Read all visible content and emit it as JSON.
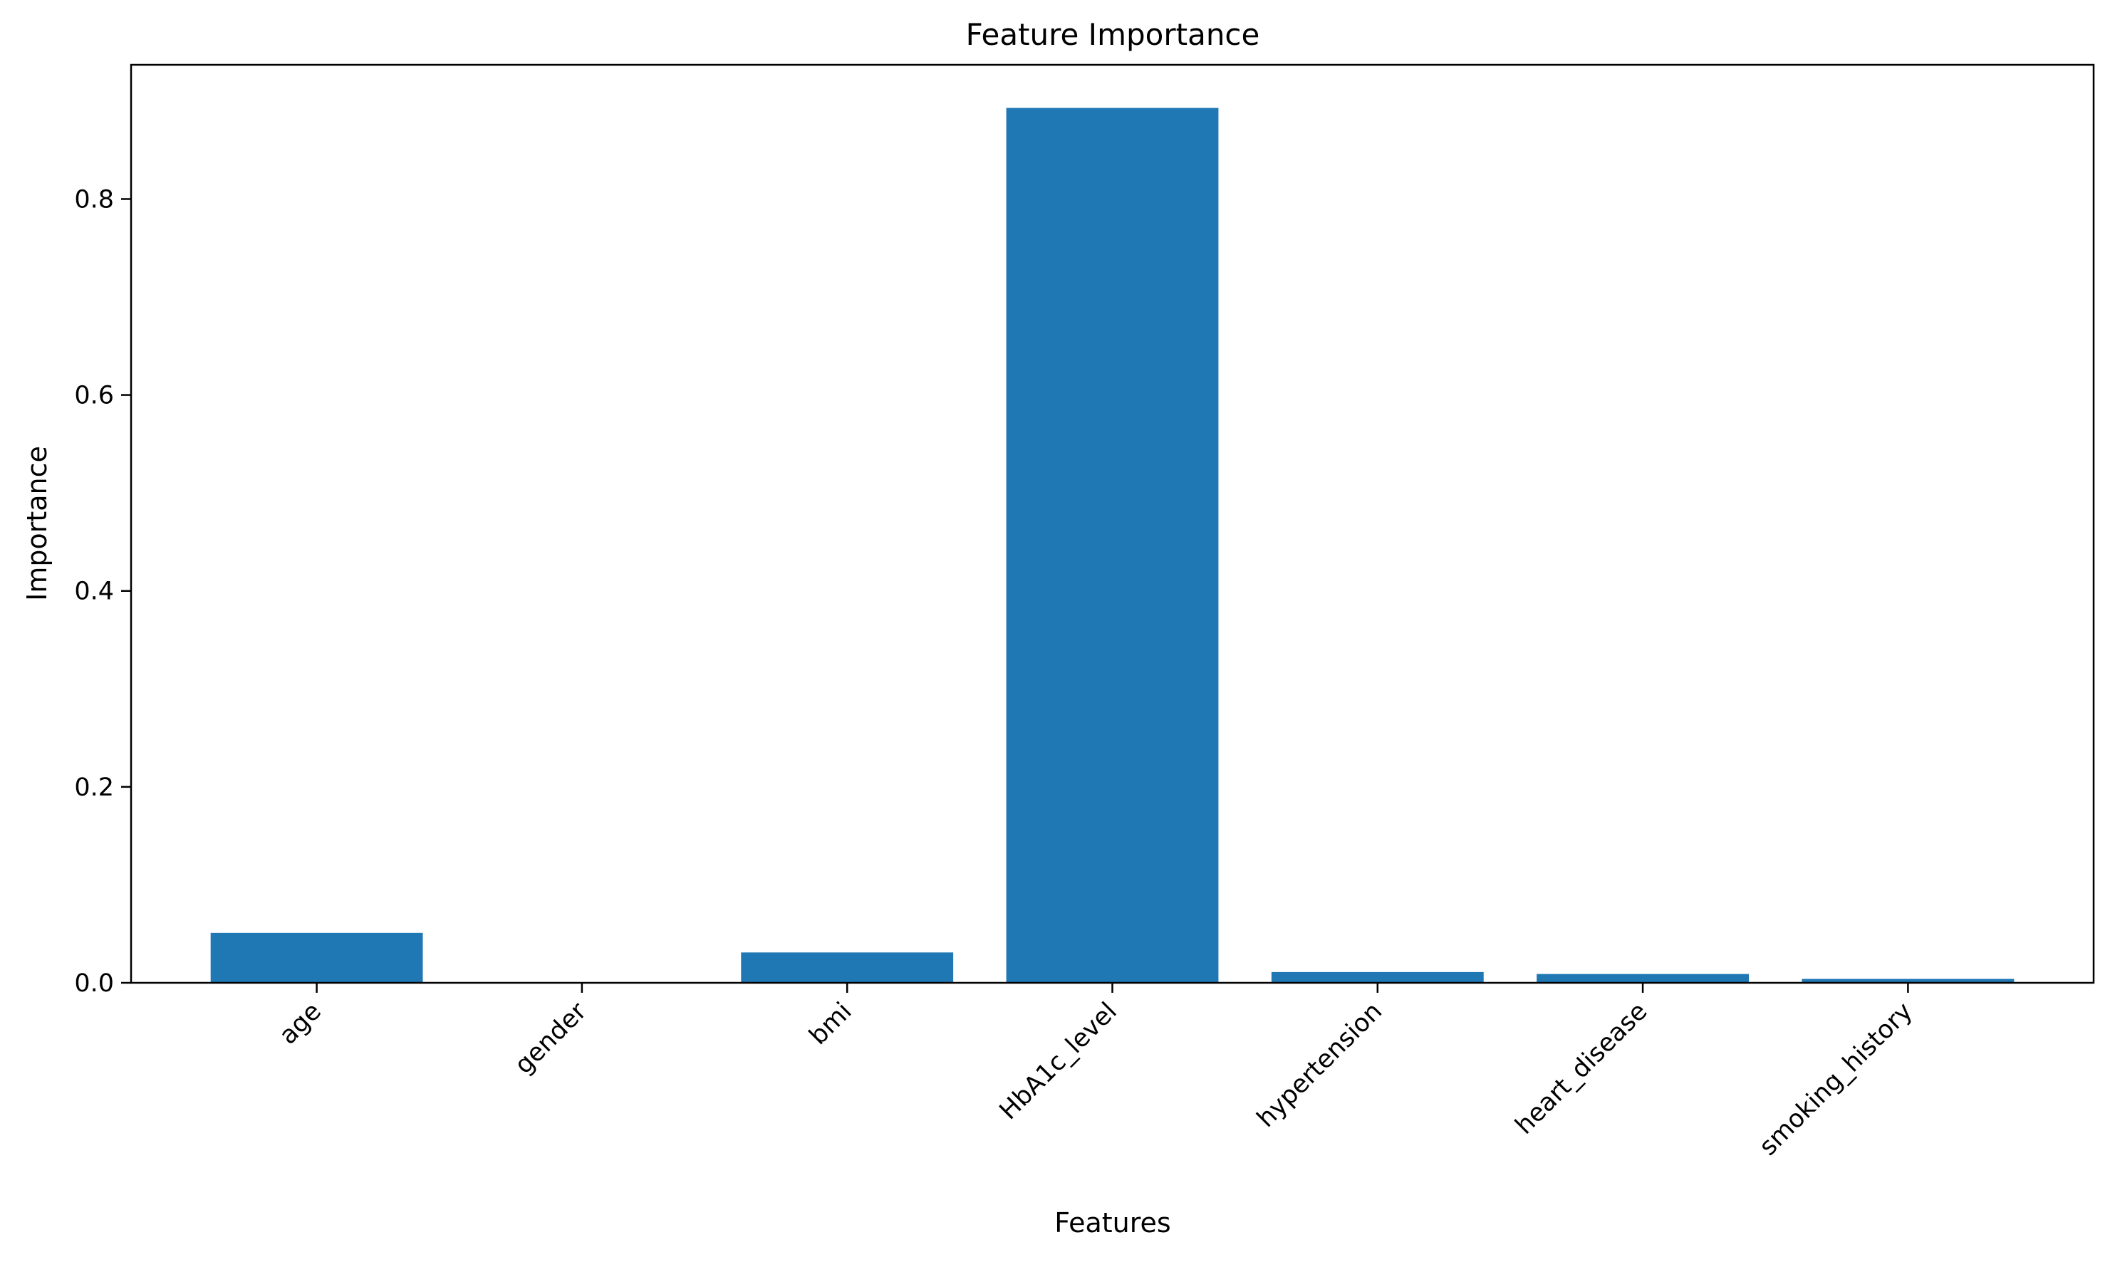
{
  "chart_data": {
    "type": "bar",
    "title": "Feature Importance",
    "xlabel": "Features",
    "ylabel": "Importance",
    "categories": [
      "age",
      "gender",
      "bmi",
      "HbA1c_level",
      "hypertension",
      "heart_disease",
      "smoking_history"
    ],
    "values": [
      0.051,
      0.0,
      0.031,
      0.893,
      0.011,
      0.009,
      0.004
    ],
    "ylim": [
      0,
      0.937
    ],
    "yticks": [
      0.0,
      0.2,
      0.4,
      0.6,
      0.8
    ],
    "ytick_labels": [
      "0.0",
      "0.2",
      "0.4",
      "0.6",
      "0.8"
    ],
    "x_tick_rotation_deg": 45,
    "bar_color": "#1f77b4",
    "grid": false,
    "legend": "none"
  }
}
